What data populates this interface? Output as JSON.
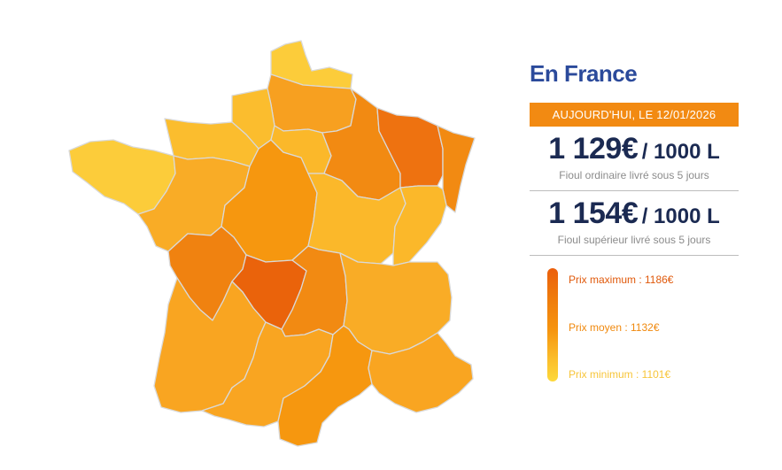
{
  "title": "En France",
  "date_badge": "AUJOURD'HUI, LE 12/01/2026",
  "prices": [
    {
      "amount": "1 129€",
      "unit": "/ 1000 L",
      "description": "Fioul ordinaire livré sous 5 jours"
    },
    {
      "amount": "1 154€",
      "unit": "/ 1000 L",
      "description": "Fioul supérieur livré sous 5 jours"
    }
  ],
  "legend": {
    "max_label": "Prix maximum : 1186€",
    "avg_label": "Prix moyen : 1132€",
    "min_label": "Prix minimum : 1101€",
    "max_color": "#eb5f0c",
    "avg_color": "#f28a12",
    "min_color": "#fdd93b"
  },
  "regions": [
    {
      "name": "Nord-Pas-de-Calais",
      "color": "#fccc3a"
    },
    {
      "name": "Picardie",
      "color": "#f7a020"
    },
    {
      "name": "Haute-Normandie",
      "color": "#fbbd2e"
    },
    {
      "name": "Basse-Normandie",
      "color": "#fbbd2e"
    },
    {
      "name": "Bretagne",
      "color": "#fccc3a"
    },
    {
      "name": "Pays de la Loire",
      "color": "#f9ac26"
    },
    {
      "name": "Centre",
      "color": "#f6970f"
    },
    {
      "name": "Île-de-France",
      "color": "#fbb82a"
    },
    {
      "name": "Champagne-Ardenne",
      "color": "#f28a12"
    },
    {
      "name": "Lorraine",
      "color": "#ee7210"
    },
    {
      "name": "Alsace",
      "color": "#f28a12"
    },
    {
      "name": "Bourgogne",
      "color": "#fbb82a"
    },
    {
      "name": "Franche-Comté",
      "color": "#fbb82a"
    },
    {
      "name": "Poitou-Charentes",
      "color": "#f08210"
    },
    {
      "name": "Limousin",
      "color": "#ea630b"
    },
    {
      "name": "Auvergne",
      "color": "#f28a12"
    },
    {
      "name": "Rhône-Alpes",
      "color": "#f9ac26"
    },
    {
      "name": "Aquitaine",
      "color": "#f9a521"
    },
    {
      "name": "Midi-Pyrénées",
      "color": "#f9a521"
    },
    {
      "name": "Languedoc-Roussillon",
      "color": "#f6970f"
    },
    {
      "name": "Provence-Alpes-Côte d'Azur",
      "color": "#f9a521"
    }
  ]
}
